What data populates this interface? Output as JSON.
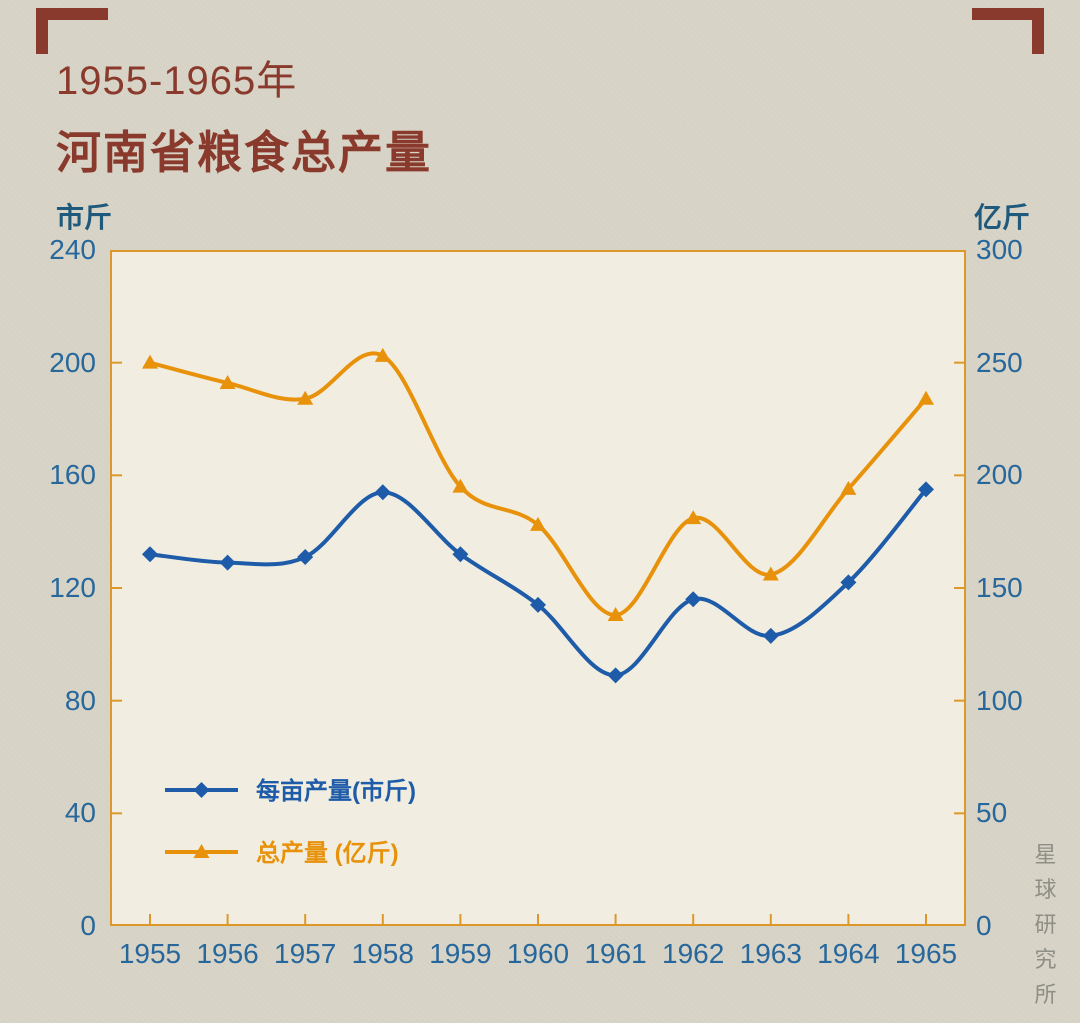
{
  "header": {
    "period": "1955-1965年",
    "title": "河南省粮食总产量"
  },
  "watermark": "星球研究所",
  "colors": {
    "background": "#d8d5c7",
    "plot_bg": "#f1eee1",
    "axis": "#dc9929",
    "title": "#8a3a2c",
    "tick_label": "#27679c",
    "unit_label": "#1f5a7d",
    "watermark": "#8f8e86",
    "series_blue": "#1e5ba8",
    "series_orange": "#e8920c"
  },
  "chart_data": {
    "type": "line",
    "title": "1955-1965年 河南省粮食总产量",
    "x": [
      1955,
      1956,
      1957,
      1958,
      1959,
      1960,
      1961,
      1962,
      1963,
      1964,
      1965
    ],
    "left_axis": {
      "label": "市斤",
      "min": 0,
      "max": 240,
      "ticks": [
        0,
        40,
        80,
        120,
        160,
        200,
        240
      ]
    },
    "right_axis": {
      "label": "亿斤",
      "min": 0,
      "max": 300,
      "ticks": [
        0,
        50,
        100,
        150,
        200,
        250,
        300
      ]
    },
    "grid": false,
    "legend_position": "lower-left-inside",
    "series": [
      {
        "name": "每亩产量(市斤)",
        "axis": "left",
        "color": "#1e5ba8",
        "marker": "diamond",
        "values": [
          132,
          129,
          131,
          154,
          132,
          114,
          89,
          116,
          103,
          122,
          155
        ]
      },
      {
        "name": "总产量 (亿斤)",
        "axis": "right",
        "color": "#e8920c",
        "marker": "triangle",
        "values": [
          250,
          241,
          234,
          253,
          195,
          178,
          138,
          181,
          156,
          194,
          234
        ]
      }
    ]
  }
}
